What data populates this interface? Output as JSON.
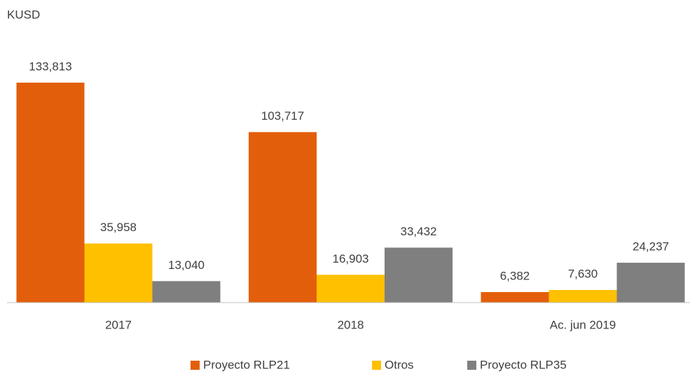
{
  "chart_data": {
    "type": "bar",
    "y_label": "KUSD",
    "categories": [
      "2017",
      "2018",
      "Ac. jun 2019"
    ],
    "series": [
      {
        "name": "Proyecto RLP21",
        "color": "#E35E0A",
        "values": [
          133813,
          103717,
          6382
        ],
        "value_labels": [
          "133,813",
          "103,717",
          "6,382"
        ]
      },
      {
        "name": "Otros",
        "color": "#FFC000",
        "values": [
          35958,
          16903,
          7630
        ],
        "value_labels": [
          "35,958",
          "16,903",
          "7,630"
        ]
      },
      {
        "name": "Proyecto RLP35",
        "color": "#7F7F7F",
        "values": [
          13040,
          33432,
          24237
        ],
        "value_labels": [
          "13,040",
          "33,432",
          "24,237"
        ]
      }
    ],
    "legend": "bottom"
  }
}
